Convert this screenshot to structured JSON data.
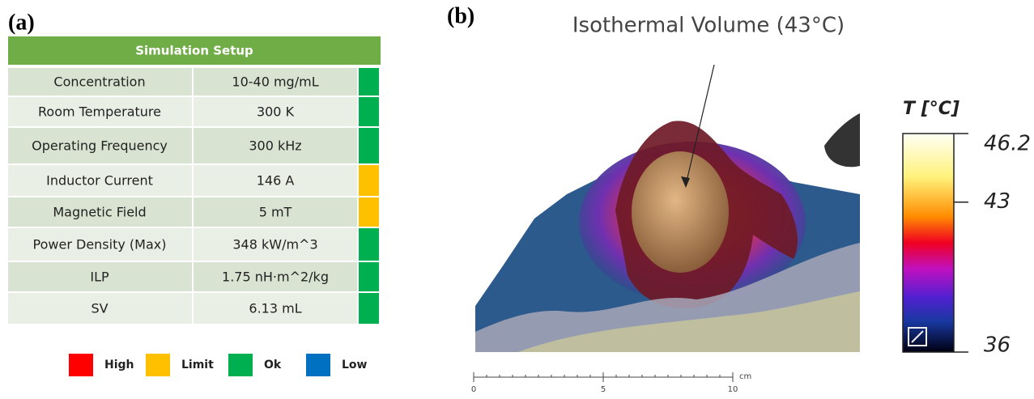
{
  "panel_a": {
    "label": "(a)",
    "table": {
      "title": "Simulation Setup",
      "header_color": "#70ad47",
      "rows": [
        {
          "label": "Concentration",
          "value": "10-40 mg/mL",
          "status_color": "#00b050"
        },
        {
          "label": "Room Temperature",
          "value": "300 K",
          "status_color": "#00b050"
        },
        {
          "label": "Operating Frequency",
          "value": "300 kHz",
          "status_color": "#00b050"
        },
        {
          "label": "Inductor Current",
          "value": "146 A",
          "status_color": "#ffc000"
        },
        {
          "label": "Magnetic Field",
          "value": "5 mT",
          "status_color": "#ffc000"
        },
        {
          "label": "Power Density (Max)",
          "value": "348 kW/m^3",
          "status_color": "#00b050"
        },
        {
          "label": "ILP",
          "value": "1.75 nH·m^2/kg",
          "status_color": "#00b050"
        },
        {
          "label": "SV",
          "value": "6.13 mL",
          "status_color": "#00b050"
        }
      ]
    },
    "legend": [
      {
        "name": "High",
        "color": "#ff0000"
      },
      {
        "name": "Limit",
        "color": "#ffc000"
      },
      {
        "name": "Ok",
        "color": "#00b050"
      },
      {
        "name": "Low",
        "color": "#0070c0"
      }
    ]
  },
  "panel_b": {
    "label": "(b)",
    "title": "Isothermal Volume (43°C)",
    "colorbar": {
      "title": "T [°C]",
      "lim": [
        36,
        46.2
      ],
      "ticks": [
        46.2,
        43,
        36
      ]
    },
    "scale_bar": {
      "unit": "cm",
      "lim": [
        0,
        10
      ],
      "ticks": [
        0,
        5,
        10
      ]
    }
  }
}
